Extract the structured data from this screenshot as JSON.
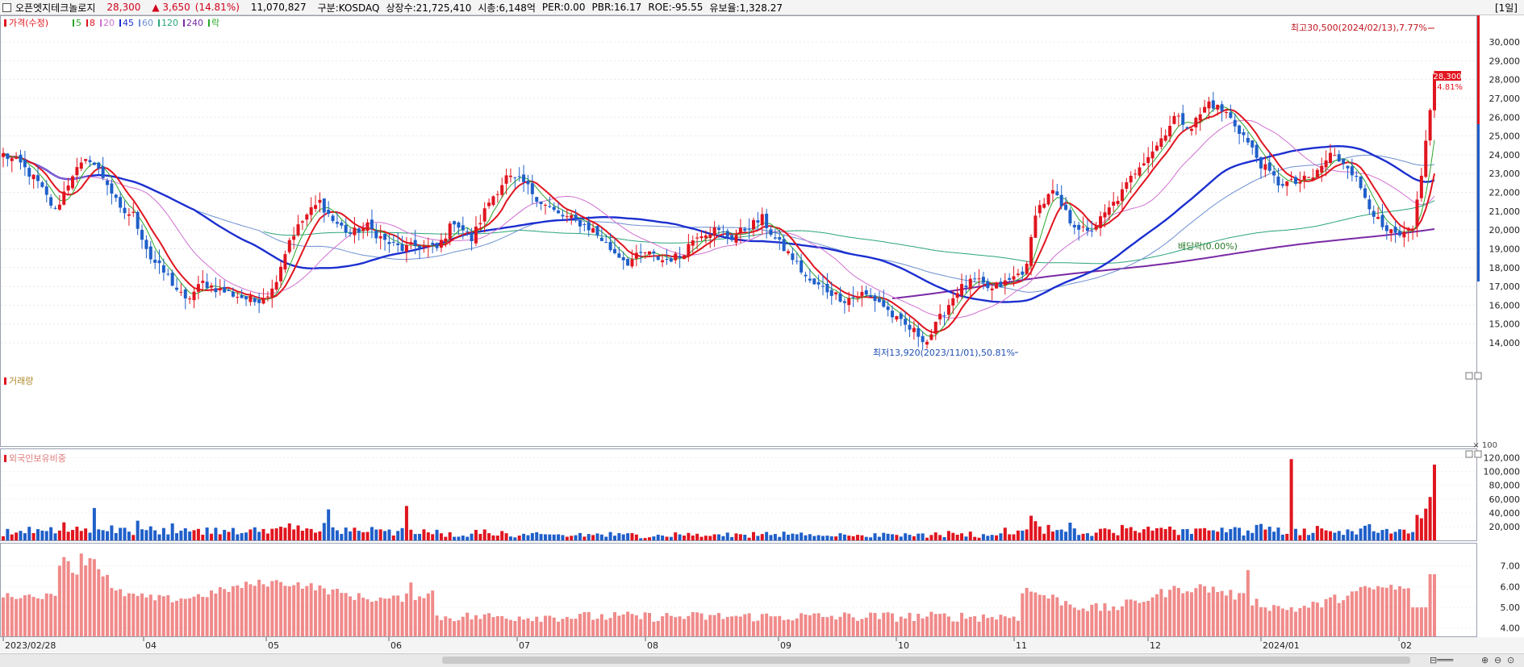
{
  "header": {
    "name": "오픈엣지테크놀로지",
    "price": "28,300",
    "change": "▲ 3,650",
    "change_pct": "(14.81%)",
    "volume": "11,070,827",
    "market": "구분:KOSDAQ",
    "shares": "상장수:21,725,410",
    "mcap": "시총:6,148억",
    "per": "PER:0.00",
    "pbr": "PBR:16.17",
    "roe": "ROE:-95.55",
    "float": "유보율:1,328.27",
    "period": "[1일]"
  },
  "legend": {
    "price": "가격(수정)",
    "ma5": "5",
    "ma8": "8",
    "ma20": "20",
    "ma45": "45",
    "ma60": "60",
    "ma120": "120",
    "ma240": "240",
    "drop": "락"
  },
  "panels": {
    "volume_title": "거래량",
    "foreign_title": "외국인보유비중",
    "volume_unit": "× 100"
  },
  "colors": {
    "up": "#e0151f",
    "down": "#1f5fc9",
    "ma5": "#2aa52a",
    "ma8": "#e0151f",
    "ma20": "#d070d0",
    "ma45": "#1c2fd0",
    "ma60": "#6c8fd0",
    "ma120": "#2aa57a",
    "ma240": "#7a2aa5",
    "foreign": "#f08a8a"
  },
  "chart_data": {
    "type": "candlestick",
    "x_labels": [
      "2023/02/28",
      "04",
      "05",
      "06",
      "07",
      "08",
      "09",
      "10",
      "11",
      "12",
      "2024/01",
      "02"
    ],
    "price_axis": [
      "30,000",
      "29,000",
      "28,000",
      "27,000",
      "26,000",
      "25,000",
      "24,000",
      "23,000",
      "22,000",
      "21,000",
      "20,000",
      "19,000",
      "18,000",
      "17,000",
      "16,000",
      "15,000",
      "14,000"
    ],
    "price_range": [
      13500,
      31000
    ],
    "current_price": "28,300",
    "current_pct": "14.81%",
    "volume_axis": [
      "120,000",
      "100,000",
      "80,000",
      "60,000",
      "40,000",
      "20,000"
    ],
    "volume_range": [
      0,
      130000
    ],
    "foreign_axis": [
      "7.00",
      "6.00",
      "5.00",
      "4.00"
    ],
    "foreign_range": [
      3.6,
      8.0
    ],
    "annotations": {
      "high": "최고30,500(2024/02/13),7.77%",
      "low": "최저13,920(2023/11/01),50.81%",
      "dividend": "배당락(0.00%)"
    },
    "close_anchors": [
      [
        0,
        24000
      ],
      [
        4,
        23500
      ],
      [
        8,
        22500
      ],
      [
        12,
        21000
      ],
      [
        16,
        23000
      ],
      [
        20,
        23800
      ],
      [
        24,
        22500
      ],
      [
        27,
        21000
      ],
      [
        30,
        20800
      ],
      [
        34,
        18500
      ],
      [
        38,
        17500
      ],
      [
        42,
        16200
      ],
      [
        46,
        17200
      ],
      [
        50,
        16800
      ],
      [
        54,
        16500
      ],
      [
        58,
        16200
      ],
      [
        62,
        16800
      ],
      [
        66,
        19500
      ],
      [
        70,
        20800
      ],
      [
        73,
        21500
      ],
      [
        76,
        20500
      ],
      [
        80,
        19800
      ],
      [
        84,
        20200
      ],
      [
        88,
        19400
      ],
      [
        92,
        19000
      ],
      [
        96,
        19200
      ],
      [
        100,
        19000
      ],
      [
        104,
        20500
      ],
      [
        108,
        19500
      ],
      [
        112,
        21500
      ],
      [
        116,
        22800
      ],
      [
        120,
        22500
      ],
      [
        124,
        21500
      ],
      [
        128,
        20800
      ],
      [
        132,
        20500
      ],
      [
        136,
        20000
      ],
      [
        140,
        19000
      ],
      [
        144,
        18300
      ],
      [
        148,
        18800
      ],
      [
        152,
        18400
      ],
      [
        156,
        18600
      ],
      [
        160,
        19800
      ],
      [
        164,
        20000
      ],
      [
        168,
        19600
      ],
      [
        172,
        20200
      ],
      [
        175,
        20600
      ],
      [
        178,
        19500
      ],
      [
        182,
        18500
      ],
      [
        186,
        17200
      ],
      [
        190,
        16800
      ],
      [
        194,
        16300
      ],
      [
        198,
        16600
      ],
      [
        202,
        16200
      ],
      [
        206,
        15200
      ],
      [
        210,
        14600
      ],
      [
        213,
        14100
      ],
      [
        216,
        15300
      ],
      [
        220,
        16800
      ],
      [
        224,
        17300
      ],
      [
        228,
        16800
      ],
      [
        232,
        17300
      ],
      [
        236,
        18000
      ],
      [
        238,
        21000
      ],
      [
        242,
        22000
      ],
      [
        246,
        20500
      ],
      [
        250,
        19800
      ],
      [
        254,
        20800
      ],
      [
        258,
        22000
      ],
      [
        262,
        23500
      ],
      [
        266,
        24500
      ],
      [
        270,
        26000
      ],
      [
        274,
        25500
      ],
      [
        278,
        26800
      ],
      [
        282,
        26200
      ],
      [
        286,
        25000
      ],
      [
        290,
        23500
      ],
      [
        294,
        22500
      ],
      [
        298,
        22500
      ],
      [
        302,
        22800
      ],
      [
        306,
        24000
      ],
      [
        310,
        23500
      ],
      [
        314,
        21800
      ],
      [
        318,
        20000
      ],
      [
        322,
        19600
      ],
      [
        325,
        20000
      ],
      [
        328,
        24600
      ],
      [
        330,
        28300
      ]
    ]
  }
}
